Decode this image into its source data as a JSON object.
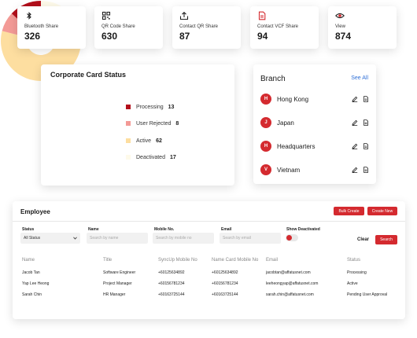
{
  "stats": [
    {
      "label": "Bluetooth Share",
      "value": "326",
      "icon": "bluetooth-icon"
    },
    {
      "label": "QR Code Share",
      "value": "630",
      "icon": "qr-code-icon"
    },
    {
      "label": "Contact QR Share",
      "value": "87",
      "icon": "share-icon"
    },
    {
      "label": "Contact VCF Share",
      "value": "94",
      "icon": "document-icon"
    },
    {
      "label": "View",
      "value": "874",
      "icon": "eye-icon"
    }
  ],
  "corporate": {
    "title": "Corporate Card Status",
    "legend": [
      {
        "label": "Processing",
        "value": "13",
        "color": "#b30f1b"
      },
      {
        "label": "User Rejected",
        "value": "8",
        "color": "#f39a96"
      },
      {
        "label": "Active",
        "value": "62",
        "color": "#fddea0"
      },
      {
        "label": "Deactivated",
        "value": "17",
        "color": "#fefaea"
      }
    ]
  },
  "branch": {
    "title": "Branch",
    "see_all": "See All",
    "items": [
      {
        "initial": "H",
        "name": "Hong Kong"
      },
      {
        "initial": "J",
        "name": "Japan"
      },
      {
        "initial": "H",
        "name": "Headquarters"
      },
      {
        "initial": "V",
        "name": "Vietnam"
      }
    ]
  },
  "employee": {
    "title": "Employee",
    "bulk_create": "Bulk Create",
    "create_new": "Create New",
    "filters": {
      "status_label": "Status",
      "status_value": "All Status",
      "name_label": "Name",
      "name_placeholder": "Search by name",
      "mobile_label": "Mobile No.",
      "mobile_placeholder": "Search by mobile no",
      "email_label": "Email",
      "email_placeholder": "Search by email",
      "show_deactivated": "Show Deactivated",
      "clear": "Clear",
      "search": "Search"
    },
    "columns": [
      "Name",
      "Title",
      "SyncUp Mobile No",
      "Name Card Mobile No",
      "Email",
      "Status"
    ],
    "rows": [
      [
        "Jacob Tan",
        "Software Engineer",
        "+60125634892",
        "+60125634892",
        "jacobtan@affatusnet.com",
        "Processing"
      ],
      [
        "Yap Lee Heong",
        "Project Manager",
        "+60156781234",
        "+60156781234",
        "leeheongyap@affatusnet.com",
        "Active"
      ],
      [
        "Sarah Chin",
        "HR Manager",
        "+60163725144",
        "+60163725144",
        "sarah.chin@affatusnet.com",
        "Pending User Approval"
      ]
    ]
  }
}
